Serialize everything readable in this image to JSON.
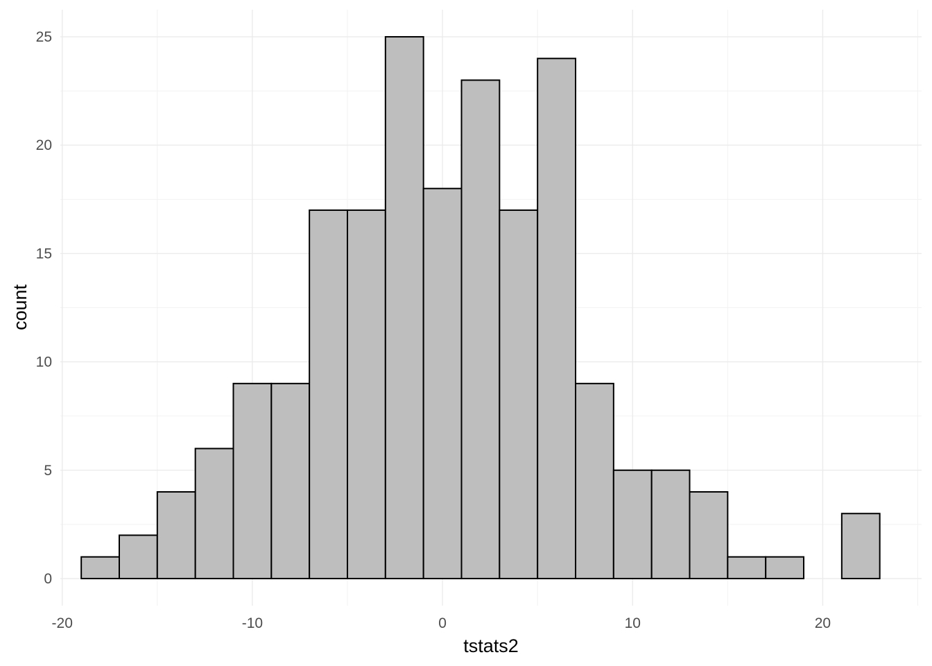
{
  "chart_data": {
    "type": "bar",
    "subtype": "histogram",
    "title": "",
    "xlabel": "tstats2",
    "ylabel": "count",
    "xlim": [
      -20.1,
      25.2
    ],
    "ylim": [
      -1.25,
      26.25
    ],
    "x_ticks": [
      -20,
      -10,
      0,
      10,
      20
    ],
    "x_tick_labels": [
      "-20",
      "-10",
      "0",
      "10",
      "20"
    ],
    "y_ticks": [
      0,
      5,
      10,
      15,
      20,
      25
    ],
    "y_tick_labels": [
      "0",
      "5",
      "10",
      "15",
      "20",
      "25"
    ],
    "grid": true,
    "legend": "none",
    "bin_width": 2,
    "bin_edges": [
      -19,
      -17,
      -15,
      -13,
      -11,
      -9,
      -7,
      -5,
      -3,
      -1,
      1,
      3,
      5,
      7,
      9,
      11,
      13,
      15,
      17,
      19,
      21,
      23
    ],
    "counts": [
      1,
      2,
      4,
      6,
      9,
      9,
      17,
      17,
      25,
      18,
      23,
      17,
      24,
      9,
      5,
      5,
      4,
      1,
      1,
      0,
      3
    ],
    "bar_fill": "#bebebe",
    "bar_outline": "#000000",
    "grid_color": "#ebebeb",
    "background": "#ffffff"
  }
}
